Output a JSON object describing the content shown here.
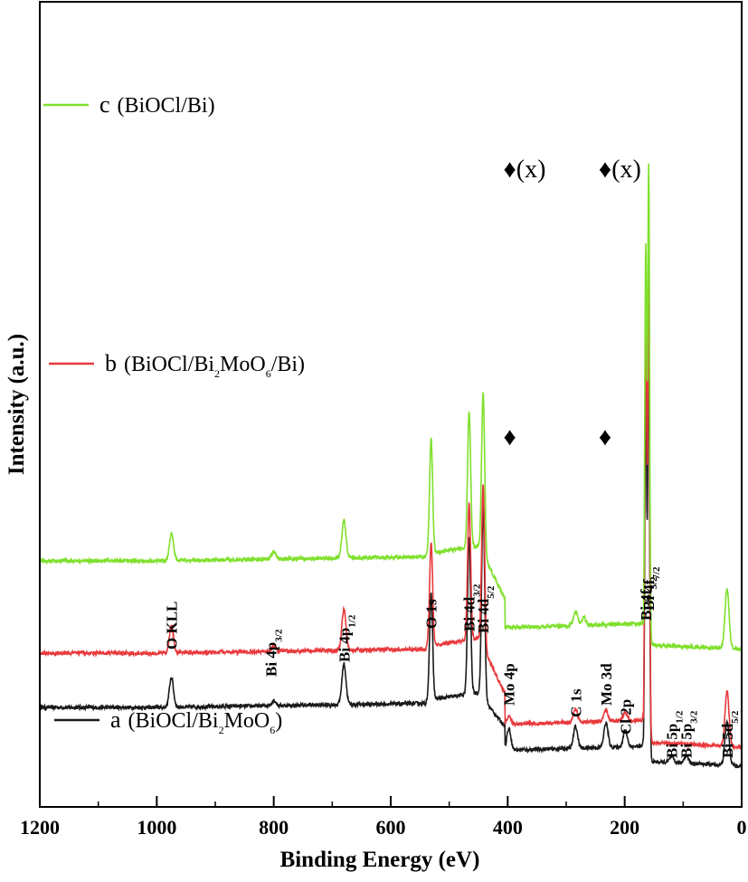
{
  "chart_data": {
    "type": "line",
    "xlabel": "Binding Energy (eV)",
    "ylabel": "Intensity (a.u.)",
    "xlim": [
      1200,
      0
    ],
    "x_reversed": true,
    "x_ticks": [
      1200,
      1000,
      800,
      600,
      400,
      200,
      0
    ],
    "y_ticks": [],
    "grid": false,
    "legend_placement": "inline, left of each curve",
    "series": [
      {
        "id": "a",
        "color": "#1a1a1a",
        "legend": {
          "letter": "a",
          "text_parts": [
            "(BiOCl/Bi",
            "2",
            "MoO",
            "6",
            ")"
          ]
        },
        "baseline_before": 27,
        "baseline_after": 6,
        "peaks": [
          {
            "x": 975,
            "h": 11
          },
          {
            "x": 800,
            "h": 2
          },
          {
            "x": 680,
            "h": 15
          },
          {
            "x": 531,
            "h": 39
          },
          {
            "x": 466,
            "h": 58
          },
          {
            "x": 442,
            "h": 72
          },
          {
            "x": 398,
            "h": 8
          },
          {
            "x": 284,
            "h": 8
          },
          {
            "x": 232,
            "h": 9
          },
          {
            "x": 199,
            "h": 6
          },
          {
            "x": 164,
            "h": 140
          },
          {
            "x": 159,
            "h": 155
          },
          {
            "x": 120,
            "h": 2
          },
          {
            "x": 95,
            "h": 3
          },
          {
            "x": 25,
            "h": 16
          }
        ],
        "peak_labels": [
          {
            "x": 975,
            "parts": [
              "O KLL"
            ]
          },
          {
            "x": 805,
            "parts": [
              "Bi 4p",
              "3/2"
            ]
          },
          {
            "x": 680,
            "parts": [
              "Bi 4p",
              "1/2"
            ]
          },
          {
            "x": 531,
            "parts": [
              "O 1s"
            ]
          },
          {
            "x": 466,
            "parts": [
              "Bi 4d",
              "3/2"
            ]
          },
          {
            "x": 442,
            "parts": [
              "Bi 4d",
              "5/2"
            ]
          },
          {
            "x": 398,
            "parts": [
              "Mo 4p"
            ]
          },
          {
            "x": 284,
            "parts": [
              "C 1s"
            ]
          },
          {
            "x": 232,
            "parts": [
              "Mo 3d"
            ]
          },
          {
            "x": 199,
            "parts": [
              "Cl 2p"
            ]
          },
          {
            "x": 164,
            "parts": [
              "Bi 4f",
              "5/2"
            ]
          },
          {
            "x": 159,
            "parts": [
              "Bi 4f",
              "7/2"
            ]
          },
          {
            "x": 120,
            "parts": [
              "Bi 5p",
              "1/2"
            ]
          },
          {
            "x": 95,
            "parts": [
              "Bi 5p",
              "3/2"
            ]
          },
          {
            "x": 25,
            "parts": [
              "Bi 5d",
              "5/2"
            ]
          }
        ]
      },
      {
        "id": "b",
        "color": "#e8393c",
        "legend": {
          "letter": "b",
          "text_parts": [
            "(BiOCl/Bi",
            "2",
            "MoO",
            "6",
            "/Bi)"
          ]
        },
        "baseline_before": 47,
        "baseline_after": 13,
        "peaks": [
          {
            "x": 975,
            "h": 10
          },
          {
            "x": 800,
            "h": 2
          },
          {
            "x": 680,
            "h": 15
          },
          {
            "x": 531,
            "h": 38
          },
          {
            "x": 466,
            "h": 50
          },
          {
            "x": 442,
            "h": 60
          },
          {
            "x": 398,
            "h": 3
          },
          {
            "x": 284,
            "h": 5
          },
          {
            "x": 232,
            "h": 4
          },
          {
            "x": 199,
            "h": 3
          },
          {
            "x": 164,
            "h": 165
          },
          {
            "x": 159,
            "h": 175
          },
          {
            "x": 25,
            "h": 20
          }
        ],
        "markers": [
          {
            "x": 392,
            "symbol": "♦",
            "text": ""
          },
          {
            "x": 229,
            "symbol": "♦",
            "text": ""
          }
        ]
      },
      {
        "id": "c",
        "color": "#7fe02c",
        "legend": {
          "letter": "c",
          "text_parts": [
            "(BiOCl/Bi)"
          ]
        },
        "baseline_before": 81,
        "baseline_after": 49,
        "peaks": [
          {
            "x": 975,
            "h": 10
          },
          {
            "x": 800,
            "h": 3
          },
          {
            "x": 680,
            "h": 14
          },
          {
            "x": 531,
            "h": 42
          },
          {
            "x": 466,
            "h": 50
          },
          {
            "x": 442,
            "h": 60
          },
          {
            "x": 284,
            "h": 5
          },
          {
            "x": 270,
            "h": 3
          },
          {
            "x": 164,
            "h": 145
          },
          {
            "x": 159,
            "h": 175
          },
          {
            "x": 25,
            "h": 22
          }
        ],
        "markers": [
          {
            "x": 392,
            "symbol": "♦",
            "text": "(x)"
          },
          {
            "x": 229,
            "symbol": "♦",
            "text": "(x)"
          }
        ]
      }
    ]
  }
}
